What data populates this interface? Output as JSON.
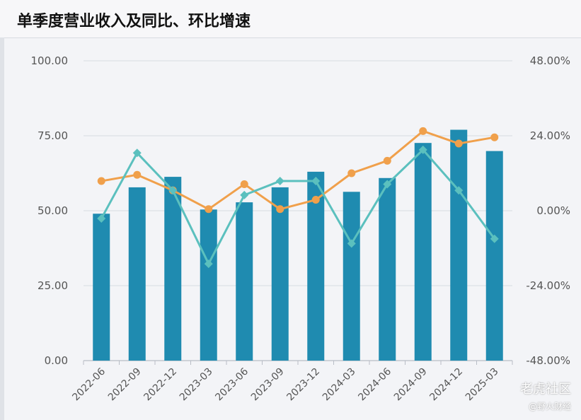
{
  "title": "单季度营业收入及同比、环比增速",
  "chart_data": {
    "type": "bar",
    "categories": [
      "2022-06",
      "2022-09",
      "2022-12",
      "2023-03",
      "2023-06",
      "2023-09",
      "2023-12",
      "2024-03",
      "2024-06",
      "2024-09",
      "2024-12",
      "2025-03"
    ],
    "series": [
      {
        "kind": "bar",
        "axis": "left",
        "color": "#1f8bb0",
        "values": [
          49.0,
          57.8,
          61.3,
          50.4,
          52.8,
          57.8,
          63.0,
          56.3,
          60.9,
          72.6,
          77.0,
          69.9
        ]
      },
      {
        "kind": "line",
        "axis": "right",
        "color": "#f0a04b",
        "marker": "circle",
        "values": [
          9.5,
          11.5,
          6.5,
          0.5,
          8.5,
          0.5,
          3.5,
          12.0,
          16.0,
          25.5,
          21.5,
          23.5
        ]
      },
      {
        "kind": "line",
        "axis": "right",
        "color": "#5bc0be",
        "marker": "diamond",
        "values": [
          -2.5,
          18.5,
          6.5,
          -17.0,
          5.0,
          9.5,
          9.5,
          -10.5,
          8.5,
          19.5,
          6.5,
          -9.0
        ]
      }
    ],
    "left_axis": {
      "min": 0,
      "max": 100,
      "ticks": [
        "0.00",
        "25.00",
        "50.00",
        "75.00",
        "100.00"
      ]
    },
    "right_axis": {
      "min": -48,
      "max": 48,
      "ticks": [
        "-48.00%",
        "-24.00%",
        "0.00%",
        "24.00%",
        "48.00%"
      ]
    },
    "grid": true
  },
  "watermarks": {
    "brand": "老虎社区",
    "sub": "@野火财经"
  }
}
